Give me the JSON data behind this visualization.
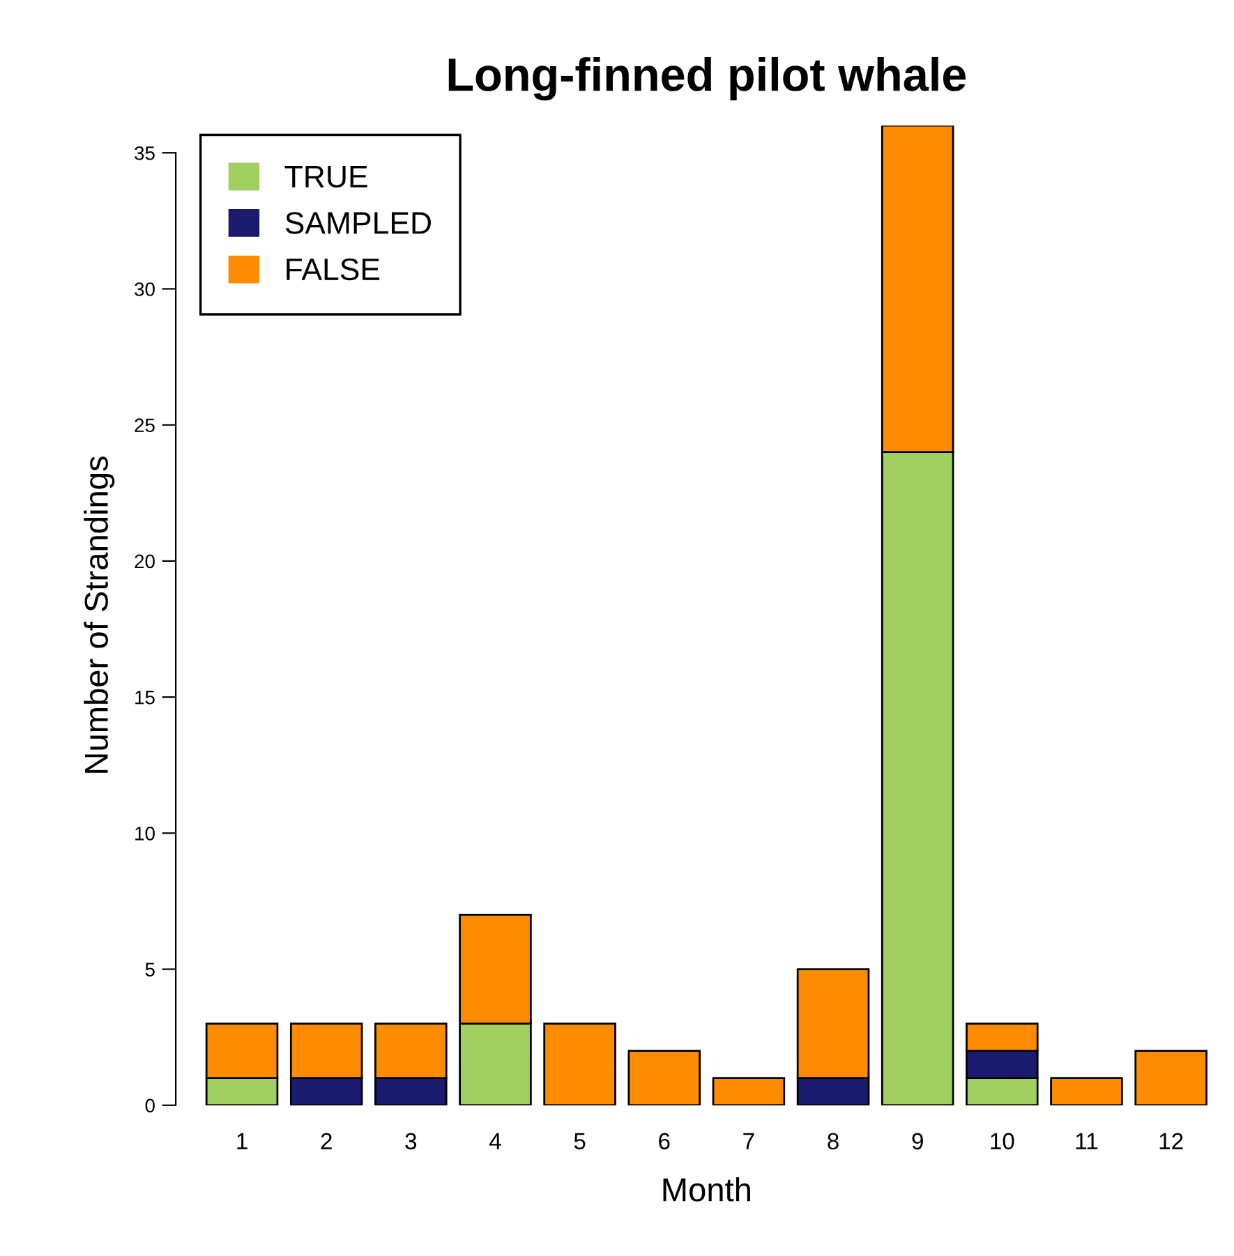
{
  "chart_data": {
    "type": "bar",
    "title": "Long-finned pilot whale",
    "xlabel": "Month",
    "ylabel": "Number of Strandings",
    "categories": [
      "1",
      "2",
      "3",
      "4",
      "5",
      "6",
      "7",
      "8",
      "9",
      "10",
      "11",
      "12"
    ],
    "stacked": true,
    "series": [
      {
        "name": "TRUE",
        "color": "#a2d060",
        "values": [
          1,
          0,
          0,
          3,
          0,
          0,
          0,
          0,
          24,
          1,
          0,
          0
        ]
      },
      {
        "name": "SAMPLED",
        "color": "#1a1a6e",
        "values": [
          0,
          1,
          1,
          0,
          0,
          0,
          0,
          1,
          0,
          1,
          0,
          0
        ]
      },
      {
        "name": "FALSE",
        "color": "#ff8c00",
        "values": [
          2,
          2,
          2,
          4,
          3,
          2,
          1,
          4,
          12,
          1,
          1,
          2
        ]
      }
    ],
    "ylim": [
      0,
      36
    ],
    "yticks": [
      0,
      5,
      10,
      15,
      20,
      25,
      30,
      35
    ],
    "grid": false,
    "legend": "top left"
  }
}
